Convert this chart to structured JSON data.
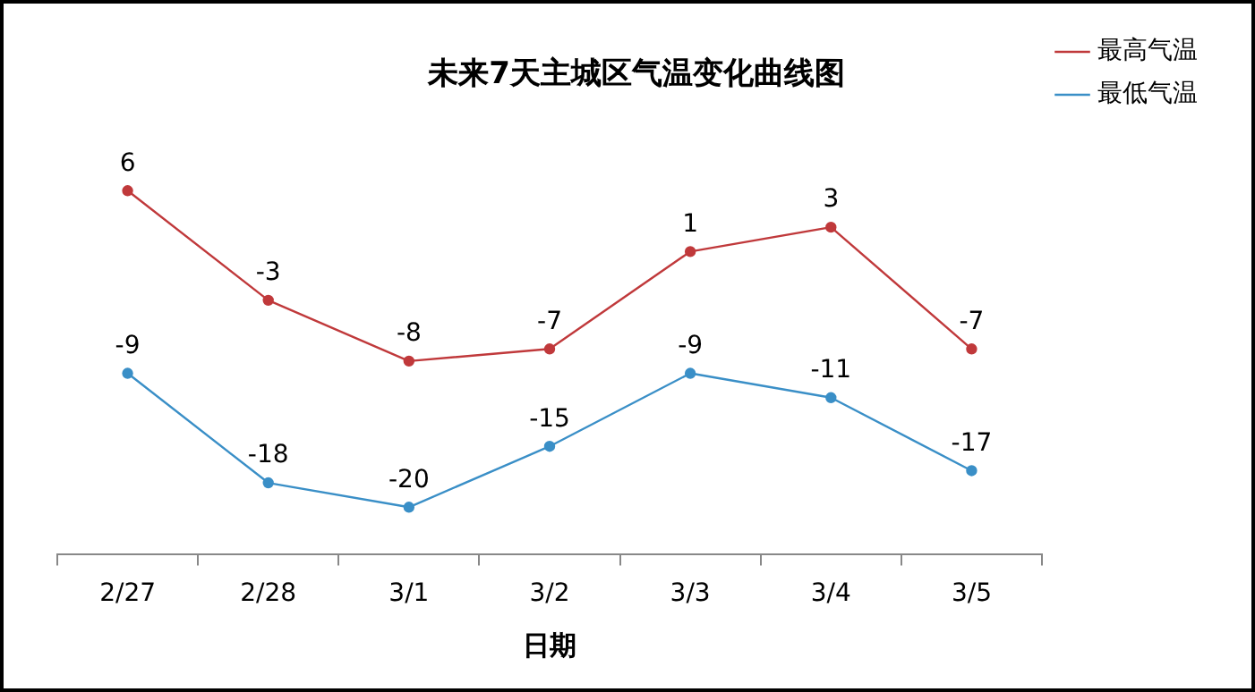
{
  "chart_data": {
    "type": "line",
    "title": "未来7天主城区气温变化曲线图",
    "xlabel": "日期",
    "categories": [
      "2/27",
      "2/28",
      "3/1",
      "3/2",
      "3/3",
      "3/4",
      "3/5"
    ],
    "series": [
      {
        "name": "最高气温",
        "color": "#c0393b",
        "values": [
          6,
          -3,
          -8,
          -7,
          1,
          3,
          -7
        ]
      },
      {
        "name": "最低气温",
        "color": "#3a8fc7",
        "values": [
          -9,
          -18,
          -20,
          -15,
          -9,
          -11,
          -17
        ]
      }
    ],
    "data_labels": true,
    "legend": "top right",
    "marker": "circle",
    "line_style": "solid"
  }
}
